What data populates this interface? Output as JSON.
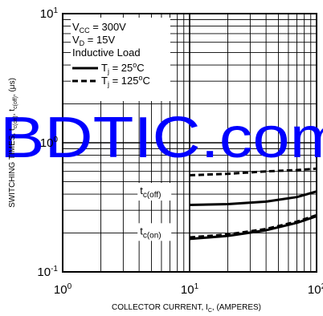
{
  "chart_data": {
    "type": "line",
    "title": "",
    "xlabel": {
      "text": "COLLECTOR CURRENT, I",
      "sub": "C",
      "suffix": ", (AMPERES)"
    },
    "ylabel": {
      "text": "SWITCHING TIMES, t",
      "sub1": "c(on)",
      "mid": ", t",
      "sub2": "c(off)",
      "suffix": ", (μs)"
    },
    "x_scale": "log",
    "y_scale": "log",
    "xlim": [
      1,
      100
    ],
    "ylim": [
      0.1,
      10
    ],
    "grid": true,
    "x_ticks": [
      {
        "base": "10",
        "exp": "0",
        "value": 1
      },
      {
        "base": "10",
        "exp": "1",
        "value": 10
      },
      {
        "base": "10",
        "exp": "2",
        "value": 100
      }
    ],
    "y_ticks": [
      {
        "base": "10",
        "exp": "1",
        "value": 10
      },
      {
        "base": "10",
        "exp": "0",
        "value": 1
      },
      {
        "base": "10",
        "exp": "-1",
        "value": 0.1
      }
    ],
    "legend": {
      "position": "top-center",
      "lines": [
        {
          "text": "V",
          "sub": "CC",
          "rest": " = 300V"
        },
        {
          "text": "V",
          "sub": "D",
          "rest": " = 15V"
        },
        {
          "text": "Inductive Load",
          "sub": "",
          "rest": ""
        }
      ],
      "entries": [
        {
          "text": "T",
          "sub": "j",
          "rest": " = 25",
          "sup": "o",
          "unit": "C",
          "style": "solid"
        },
        {
          "text": "T",
          "sub": "j",
          "rest": " = 125",
          "sup": "o",
          "unit": "C",
          "style": "dashed"
        }
      ]
    },
    "series": [
      {
        "label": "t",
        "label_sub": "c(off)",
        "condition": "25",
        "style": "solid",
        "x": [
          10,
          20,
          40,
          70,
          100
        ],
        "y": [
          0.33,
          0.335,
          0.35,
          0.38,
          0.42
        ]
      },
      {
        "label": "t",
        "label_sub": "c(off)",
        "condition": "125",
        "style": "dashed",
        "x": [
          10,
          20,
          40,
          70,
          100
        ],
        "y": [
          0.56,
          0.575,
          0.6,
          0.615,
          0.63
        ]
      },
      {
        "label": "t",
        "label_sub": "c(on)",
        "condition": "25",
        "style": "solid",
        "x": [
          10,
          20,
          40,
          70,
          100
        ],
        "y": [
          0.18,
          0.19,
          0.21,
          0.24,
          0.27
        ]
      },
      {
        "label": "t",
        "label_sub": "c(on)",
        "condition": "125",
        "style": "dashed",
        "x": [
          10,
          20,
          40,
          70,
          100
        ],
        "y": [
          0.185,
          0.195,
          0.215,
          0.245,
          0.275
        ]
      }
    ],
    "annotations": [
      {
        "text": "t",
        "sub": "c(off)",
        "x": 5.6,
        "y": 0.4
      },
      {
        "text": "t",
        "sub": "c(on)",
        "x": 5.6,
        "y": 0.195
      }
    ]
  },
  "watermark": {
    "text": "BDTIC.com",
    "color": "#0000ff"
  },
  "colors": {
    "line": "#000000",
    "grid": "#000000",
    "background": "#ffffff"
  }
}
